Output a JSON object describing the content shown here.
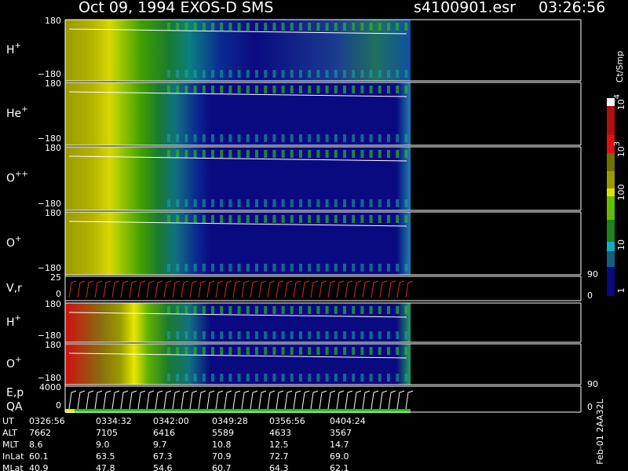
{
  "header": {
    "title": "Oct 09, 1994   EXOS-D SMS",
    "file": "s4100901.esr",
    "time": "03:26:56"
  },
  "panels": [
    {
      "label": "H",
      "sup": "+",
      "ticks": [
        "180",
        "−180"
      ]
    },
    {
      "label": "He",
      "sup": "+",
      "ticks": [
        "180",
        "−180"
      ]
    },
    {
      "label": "O",
      "sup": "++",
      "ticks": [
        "180",
        "−180"
      ]
    },
    {
      "label": "O",
      "sup": "+",
      "ticks": [
        "180",
        "−180"
      ]
    },
    {
      "label": "V,r",
      "ticks": [
        "25",
        "0"
      ],
      "right_ticks": [
        "90",
        "0"
      ]
    },
    {
      "label": "H",
      "sup": "+",
      "ticks": [
        "180",
        "−180"
      ]
    },
    {
      "label": "O",
      "sup": "+",
      "ticks": [
        "180",
        "−180"
      ]
    },
    {
      "label": "E,p",
      "label2": "QA",
      "ticks": [
        "4000",
        "0"
      ],
      "right_ticks": [
        "90",
        "0"
      ]
    }
  ],
  "colorbar": {
    "unit": "Ct/Smp",
    "labels": [
      {
        "text": "10",
        "sup": "4"
      },
      {
        "text": "10",
        "sup": "3"
      },
      {
        "text": "100"
      },
      {
        "text": "10"
      },
      {
        "text": "1"
      }
    ]
  },
  "table": {
    "rows": [
      {
        "label": "UT",
        "values": [
          "0326:56",
          "0334:32",
          "0342:00",
          "0349:28",
          "0356:56",
          "0404:24"
        ]
      },
      {
        "label": "ALT",
        "values": [
          "7662",
          "7105",
          "6416",
          "5589",
          "4633",
          "3567"
        ]
      },
      {
        "label": "MLT",
        "values": [
          "8.6",
          "9.0",
          "9.7",
          "10.8",
          "12.5",
          "14.7"
        ]
      },
      {
        "label": "InLat",
        "values": [
          "60.1",
          "63.5",
          "67.3",
          "70.9",
          "72.7",
          "69.0"
        ]
      },
      {
        "label": "MLat",
        "values": [
          "40.9",
          "47.8",
          "54.6",
          "60.7",
          "64.3",
          "62.1"
        ]
      }
    ]
  },
  "footer_note": "Feb-01 2AA32L"
}
